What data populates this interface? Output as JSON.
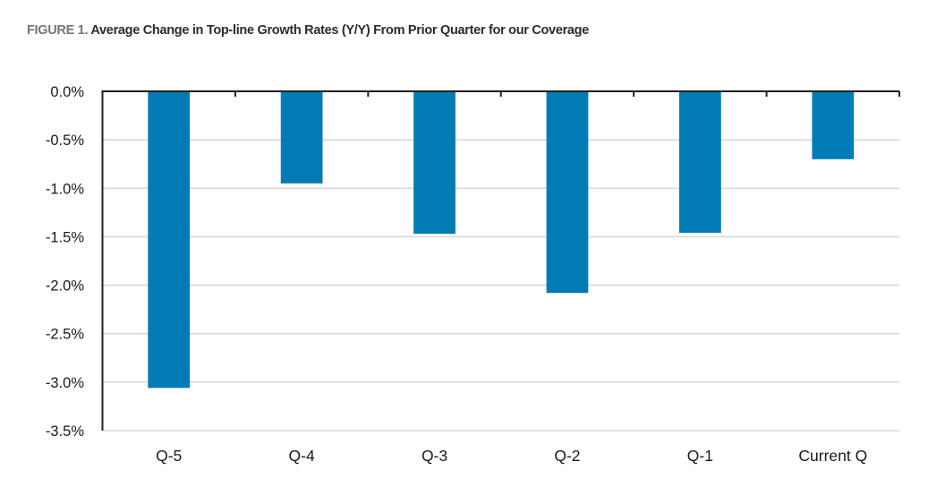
{
  "chart_data": {
    "type": "bar",
    "title_prefix": "FIGURE 1.",
    "title": "Average Change in Top-line Growth Rates (Y/Y) From Prior Quarter for our Coverage",
    "xlabel": "",
    "ylabel": "",
    "categories": [
      "Q-5",
      "Q-4",
      "Q-3",
      "Q-2",
      "Q-1",
      "Current Q"
    ],
    "series": [
      {
        "name": "Average change in top-line growth rate",
        "values": [
          -3.06,
          -0.95,
          -1.47,
          -2.08,
          -1.46,
          -0.7
        ],
        "color": "#007bb5"
      }
    ],
    "ylim": [
      -3.5,
      0.0
    ],
    "yticks": [
      0.0,
      -0.5,
      -1.0,
      -1.5,
      -2.0,
      -2.5,
      -3.0,
      -3.5
    ],
    "ytick_labels": [
      "0.0%",
      "-0.5%",
      "-1.0%",
      "-1.5%",
      "-2.0%",
      "-2.5%",
      "-3.0%",
      "-3.5%"
    ],
    "grid": "horizontal",
    "legend": "none",
    "colors": {
      "bar": "#007bb5",
      "grid": "#d9d9d9",
      "axis": "#1f1f1f"
    }
  }
}
